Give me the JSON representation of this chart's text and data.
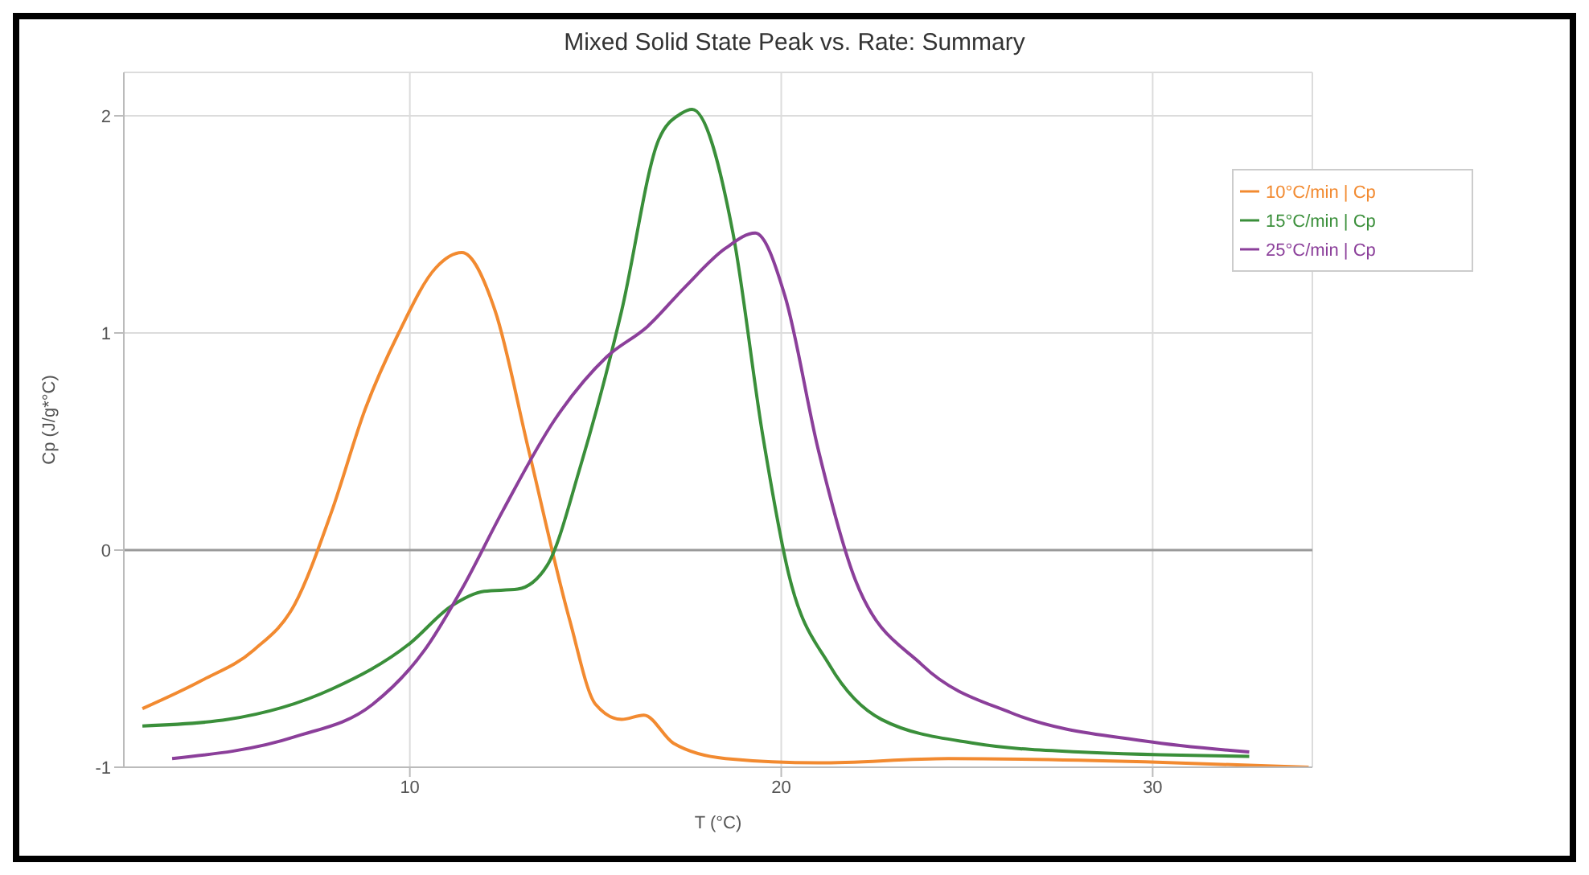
{
  "chart_data": {
    "type": "line",
    "title": "Mixed Solid State Peak vs. Rate: Summary",
    "xlabel": "T (°C)",
    "ylabel": "Cp (J/g*°C)",
    "xlim": [
      2.3,
      34.3
    ],
    "xticks": [
      10,
      20,
      30
    ],
    "ylim": [
      -1,
      2.2
    ],
    "yticks": [
      -1,
      0,
      1,
      2
    ],
    "grid": true,
    "legend": "top right",
    "marker": "none",
    "line_style": "solid",
    "ref_lines": [
      {
        "axis": "y",
        "value": 0,
        "color": "#9a9a9a"
      }
    ],
    "series": [
      {
        "name": "10°C/min | Cp",
        "color": "#f28a30",
        "x": [
          2.8,
          4.4,
          5.8,
          6.9,
          7.9,
          8.8,
          9.7,
          10.7,
          11.4,
          12.3,
          13.2,
          14.3,
          15.0,
          15.7,
          16.3,
          17.1,
          18.5,
          21,
          24.5,
          29.8,
          34.2
        ],
        "values": [
          -0.73,
          -0.6,
          -0.46,
          -0.25,
          0.18,
          0.65,
          1.0,
          1.3,
          1.37,
          1.1,
          0.46,
          -0.32,
          -0.71,
          -0.78,
          -0.76,
          -0.89,
          -0.96,
          -0.98,
          -0.96,
          -0.975,
          -1.0
        ]
      },
      {
        "name": "15°C/min | Cp",
        "color": "#3a8f3a",
        "x": [
          2.8,
          5.1,
          7.9,
          10,
          11.1,
          12,
          12.9,
          13.7,
          14.6,
          15.7,
          16.7,
          17.3,
          17.6,
          18.7,
          19.5,
          20.2,
          21.3,
          22.7,
          25.2,
          28,
          32.6
        ],
        "values": [
          -0.81,
          -0.78,
          -0.64,
          -0.43,
          -0.26,
          -0.19,
          -0.18,
          -0.07,
          0.39,
          1.1,
          1.89,
          2.01,
          2.03,
          1.46,
          0.53,
          -0.11,
          -0.53,
          -0.78,
          -0.89,
          -0.93,
          -0.95
        ]
      },
      {
        "name": "25°C/min | Cp",
        "color": "#8b3f9a",
        "x": [
          3.6,
          6.9,
          9,
          10.4,
          11.4,
          12.5,
          13.9,
          15.3,
          16.4,
          17.4,
          18.5,
          19.3,
          20.1,
          21,
          22,
          23.8,
          26.2,
          29.8,
          32.6
        ],
        "values": [
          -0.96,
          -0.86,
          -0.71,
          -0.46,
          -0.18,
          0.18,
          0.6,
          0.89,
          1.03,
          1.21,
          1.39,
          1.46,
          1.17,
          0.46,
          -0.14,
          -0.53,
          -0.75,
          -0.88,
          -0.93
        ]
      }
    ]
  }
}
